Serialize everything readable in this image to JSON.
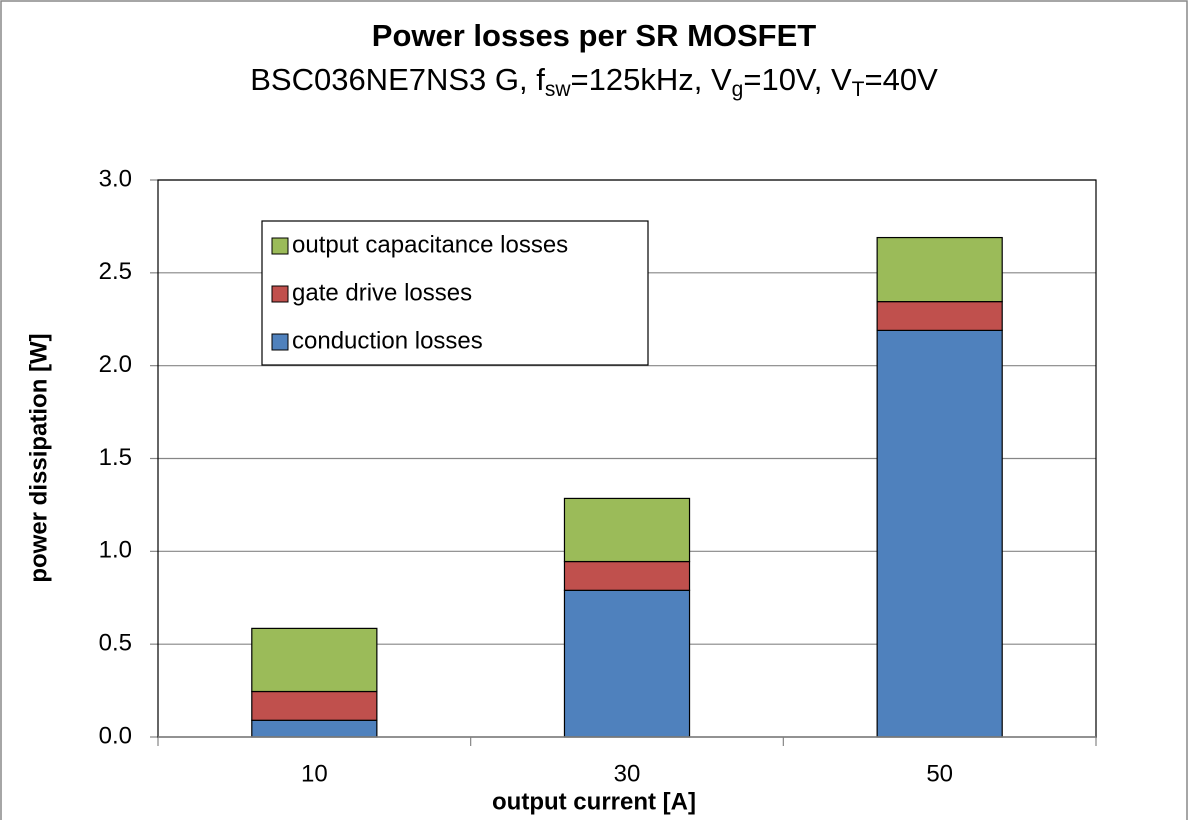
{
  "chart_data": {
    "type": "stacked_bar",
    "title": "Power losses per SR MOSFET",
    "subtitle_parts": [
      {
        "text": "BSC036NE7NS3 G, f"
      },
      {
        "text": "sw",
        "sub": true
      },
      {
        "text": "=125kHz, V"
      },
      {
        "text": "g",
        "sub": true
      },
      {
        "text": "=10V, V"
      },
      {
        "text": "T",
        "sub": true
      },
      {
        "text": "=40V"
      }
    ],
    "x_label": "output current [A]",
    "y_label": "power dissipation [W]",
    "categories": [
      "10",
      "30",
      "50"
    ],
    "series": [
      {
        "name": "conduction losses",
        "color": "#4f81bd",
        "values": [
          0.09,
          0.79,
          2.19
        ]
      },
      {
        "name": "gate drive losses",
        "color": "#c0504d",
        "values": [
          0.155,
          0.155,
          0.155
        ]
      },
      {
        "name": "output capacitance losses",
        "color": "#9bbb59",
        "values": [
          0.34,
          0.34,
          0.345
        ]
      }
    ],
    "ylim": [
      0,
      3
    ],
    "yticks": [
      {
        "value": 0,
        "label": "0.0"
      },
      {
        "value": 0.5,
        "label": "0.5"
      },
      {
        "value": 1,
        "label": "1.0"
      },
      {
        "value": 1.5,
        "label": "1.5"
      },
      {
        "value": 2,
        "label": "2.0"
      },
      {
        "value": 2.5,
        "label": "2.5"
      },
      {
        "value": 3,
        "label": "3.0"
      }
    ],
    "grid": true,
    "legend": "upper left"
  }
}
